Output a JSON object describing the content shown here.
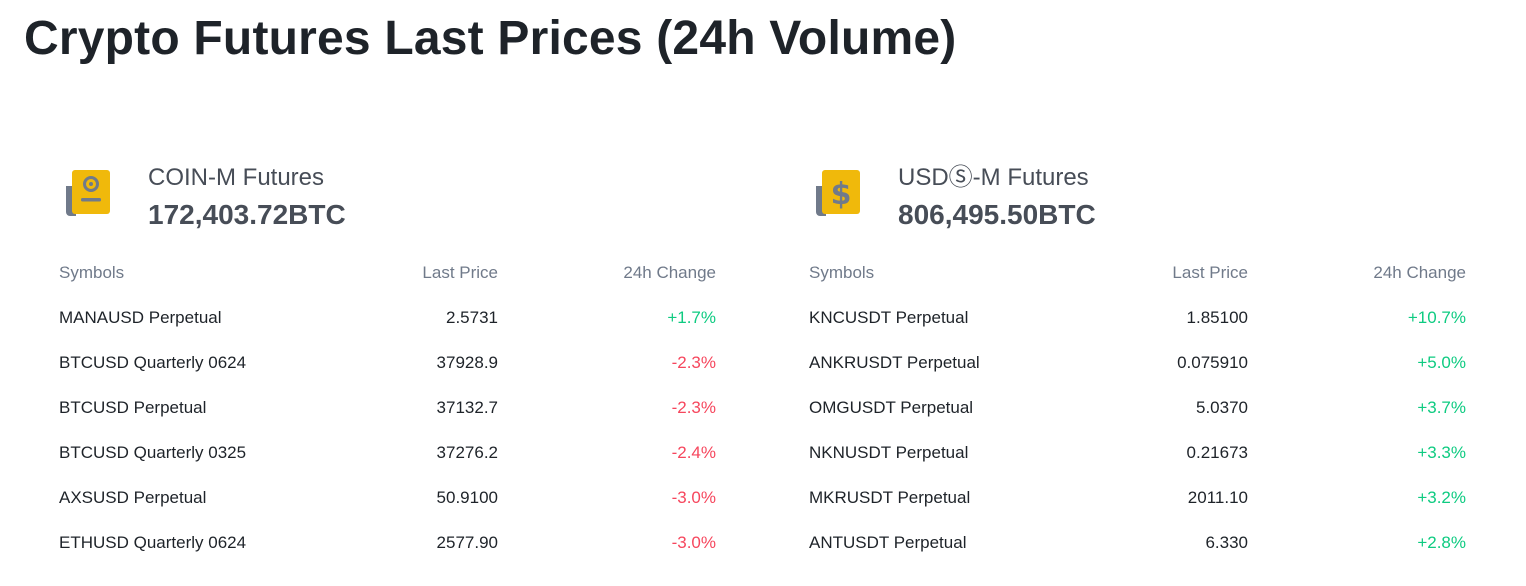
{
  "title": "Crypto Futures Last Prices (24h Volume)",
  "colors": {
    "positive": "#0ecb81",
    "negative": "#f6465d",
    "icon_yellow": "#f0b90b",
    "icon_gray": "#707a8a"
  },
  "columns": {
    "symbols": "Symbols",
    "last_price": "Last Price",
    "change_24h": "24h Change"
  },
  "panels": [
    {
      "name": "COIN-M Futures",
      "volume": "172,403.72BTC",
      "icon": "coin-document-icon",
      "rows": [
        {
          "symbol": "MANAUSD Perpetual",
          "price": "2.5731",
          "change": "+1.7%",
          "direction": "up"
        },
        {
          "symbol": "BTCUSD Quarterly 0624",
          "price": "37928.9",
          "change": "-2.3%",
          "direction": "down"
        },
        {
          "symbol": "BTCUSD Perpetual",
          "price": "37132.7",
          "change": "-2.3%",
          "direction": "down"
        },
        {
          "symbol": "BTCUSD Quarterly 0325",
          "price": "37276.2",
          "change": "-2.4%",
          "direction": "down"
        },
        {
          "symbol": "AXSUSD Perpetual",
          "price": "50.9100",
          "change": "-3.0%",
          "direction": "down"
        },
        {
          "symbol": "ETHUSD Quarterly 0624",
          "price": "2577.90",
          "change": "-3.0%",
          "direction": "down"
        }
      ]
    },
    {
      "name": "USDⓈ-M Futures",
      "volume": "806,495.50BTC",
      "icon": "dollar-document-icon",
      "rows": [
        {
          "symbol": "KNCUSDT Perpetual",
          "price": "1.85100",
          "change": "+10.7%",
          "direction": "up"
        },
        {
          "symbol": "ANKRUSDT Perpetual",
          "price": "0.075910",
          "change": "+5.0%",
          "direction": "up"
        },
        {
          "symbol": "OMGUSDT Perpetual",
          "price": "5.0370",
          "change": "+3.7%",
          "direction": "up"
        },
        {
          "symbol": "NKNUSDT Perpetual",
          "price": "0.21673",
          "change": "+3.3%",
          "direction": "up"
        },
        {
          "symbol": "MKRUSDT Perpetual",
          "price": "2011.10",
          "change": "+3.2%",
          "direction": "up"
        },
        {
          "symbol": "ANTUSDT Perpetual",
          "price": "6.330",
          "change": "+2.8%",
          "direction": "up"
        }
      ]
    }
  ]
}
